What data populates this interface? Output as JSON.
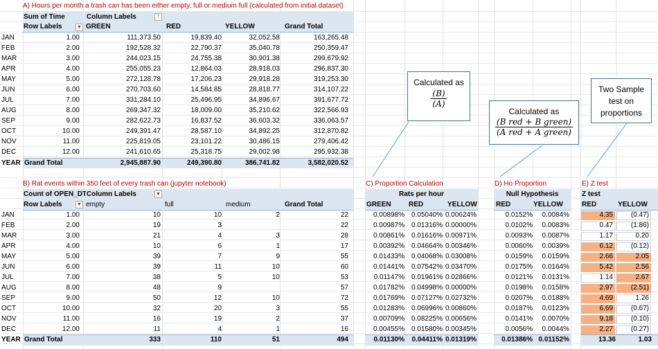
{
  "tableA": {
    "title": "A) Hours per month a trash can has been either empty, full or medium full (calculated from initial dataset)",
    "valueField": "Sum of Time",
    "columnLabels": "Column Labels",
    "rowLabels": "Row Labels",
    "headers": [
      "GREEN",
      "RED",
      "YELLOW",
      "Grand Total"
    ],
    "months": [
      "JAN",
      "FEB",
      "MAR",
      "APR",
      "MAY",
      "JUN",
      "JUL",
      "AUG",
      "SEP",
      "OCT",
      "NOV",
      "DEC"
    ],
    "rowNums": [
      "1.00",
      "2.00",
      "3.00",
      "4.00",
      "5.00",
      "6.00",
      "7.00",
      "8.00",
      "9.00",
      "10.00",
      "11.00",
      "12.00"
    ],
    "rows": [
      [
        "111,373.50",
        "19,839.40",
        "32,052.58",
        "163,265.48"
      ],
      [
        "192,528.32",
        "22,790.37",
        "35,040.78",
        "250,359.47"
      ],
      [
        "244,023.15",
        "24,755.38",
        "30,901.38",
        "299,679.92"
      ],
      [
        "255,055.23",
        "12,864.03",
        "28,918.03",
        "296,837.30"
      ],
      [
        "272,128.78",
        "17,206.23",
        "29,918.28",
        "319,253.30"
      ],
      [
        "270,703.60",
        "14,584.85",
        "28,818.77",
        "314,107.22"
      ],
      [
        "331,284.10",
        "25,496.95",
        "34,896.67",
        "391,677.72"
      ],
      [
        "269,347.32",
        "18,009.00",
        "35,210.62",
        "322,566.93"
      ],
      [
        "282,622.73",
        "16,837.52",
        "36,603.32",
        "336,063.57"
      ],
      [
        "249,391.47",
        "28,587.10",
        "34,892.25",
        "312,870.82"
      ],
      [
        "225,819.05",
        "23,101.22",
        "30,486.15",
        "279,406.42"
      ],
      [
        "241,610.65",
        "25,318.75",
        "29,002.98",
        "295,932.38"
      ]
    ],
    "totalRowKey": "YEAR",
    "grandTotalLabel": "Grand Total",
    "totals": [
      "2,945,887.90",
      "249,390.80",
      "386,741.82",
      "3,582,020.52"
    ]
  },
  "tableB": {
    "title": "B) Rat events within 350 feet of every trash can (jupyter notebook)",
    "valueField": "Count of OPEN_DT",
    "columnLabels": "Column Labels",
    "rowLabels": "Row Labels",
    "headers": [
      "empty",
      "full",
      "medium",
      "Grand Total"
    ],
    "rows": [
      [
        "10",
        "10",
        "2",
        "22"
      ],
      [
        "19",
        "3",
        "",
        "22"
      ],
      [
        "21",
        "4",
        "3",
        "28"
      ],
      [
        "10",
        "6",
        "1",
        "17"
      ],
      [
        "39",
        "7",
        "9",
        "55"
      ],
      [
        "39",
        "11",
        "10",
        "60"
      ],
      [
        "38",
        "5",
        "10",
        "53"
      ],
      [
        "48",
        "9",
        "",
        "57"
      ],
      [
        "50",
        "12",
        "10",
        "72"
      ],
      [
        "32",
        "20",
        "3",
        "55"
      ],
      [
        "16",
        "19",
        "2",
        "37"
      ],
      [
        "11",
        "4",
        "1",
        "16"
      ]
    ],
    "totalRowKey": "YEAR",
    "grandTotalLabel": "Grand Total",
    "totals": [
      "333",
      "110",
      "51",
      "494"
    ]
  },
  "tableC": {
    "title": "C) Proportion Calculation",
    "supertitle": "Rats per hour",
    "headers": [
      "GREEN",
      "RED",
      "YELLOW"
    ],
    "rows": [
      [
        "0.00898%",
        "0.05040%",
        "0.00624%"
      ],
      [
        "0.00987%",
        "0.01316%",
        "0.00000%"
      ],
      [
        "0.00861%",
        "0.01616%",
        "0.00971%"
      ],
      [
        "0.00392%",
        "0.04664%",
        "0.00346%"
      ],
      [
        "0.01433%",
        "0.04068%",
        "0.03008%"
      ],
      [
        "0.01441%",
        "0.07542%",
        "0.03470%"
      ],
      [
        "0.01147%",
        "0.01961%",
        "0.02866%"
      ],
      [
        "0.01782%",
        "0.04998%",
        "0.00000%"
      ],
      [
        "0.01769%",
        "0.07127%",
        "0.02732%"
      ],
      [
        "0.01283%",
        "0.06996%",
        "0.00860%"
      ],
      [
        "0.00709%",
        "0.08225%",
        "0.00656%"
      ],
      [
        "0.00455%",
        "0.01580%",
        "0.00345%"
      ]
    ],
    "totals": [
      "0.01130%",
      "0.04411%",
      "0.01319%"
    ]
  },
  "tableD": {
    "title": "D) Ho Proportion",
    "supertitle": "Null Hypothesis",
    "headers": [
      "RED",
      "YELLOW"
    ],
    "rows": [
      [
        "0.0152%",
        "0.0084%"
      ],
      [
        "0.0102%",
        "0.0083%"
      ],
      [
        "0.0093%",
        "0.0087%"
      ],
      [
        "0.0060%",
        "0.0039%"
      ],
      [
        "0.0159%",
        "0.0159%"
      ],
      [
        "0.0175%",
        "0.0164%"
      ],
      [
        "0.0121%",
        "0.0131%"
      ],
      [
        "0.0198%",
        "0.0158%"
      ],
      [
        "0.0207%",
        "0.0188%"
      ],
      [
        "0.0187%",
        "0.0123%"
      ],
      [
        "0.0141%",
        "0.0070%"
      ],
      [
        "0.0056%",
        "0.0044%"
      ]
    ],
    "totals": [
      "0.01386%",
      "0.01152%"
    ]
  },
  "tableE": {
    "title": "E) Z test",
    "supertitle": "Z test",
    "headers": [
      "RED",
      "YELLOW"
    ],
    "rows": [
      [
        "4.35",
        "(0.47)"
      ],
      [
        "0.47",
        "(1.86)"
      ],
      [
        "1.17",
        "0.20"
      ],
      [
        "6.12",
        "(0.12)"
      ],
      [
        "2.66",
        "2.05"
      ],
      [
        "5.42",
        "2.56"
      ],
      [
        "1.14",
        "2.67"
      ],
      [
        "2.97",
        "(2.51)"
      ],
      [
        "4.69",
        "1.26"
      ],
      [
        "6.69",
        "(0.67)"
      ],
      [
        "9.18",
        "(0.10)"
      ],
      [
        "2.27",
        "(0.27)"
      ]
    ],
    "highlight": [
      [
        true,
        false
      ],
      [
        false,
        false
      ],
      [
        false,
        false
      ],
      [
        true,
        false
      ],
      [
        true,
        true
      ],
      [
        true,
        true
      ],
      [
        false,
        true
      ],
      [
        true,
        true
      ],
      [
        true,
        false
      ],
      [
        true,
        false
      ],
      [
        true,
        false
      ],
      [
        true,
        false
      ]
    ],
    "highlightColor": "#f4b183",
    "totals": [
      "13.36",
      "1.03"
    ]
  },
  "callouts": [
    {
      "text": "Calculated as",
      "numerator": "(B)",
      "denominator": "(A)"
    },
    {
      "text": "Calculated as",
      "numerator": "(B red + B green)",
      "denominator": "(A red + A green)"
    },
    {
      "lines": [
        "Two Sample",
        "test on",
        "proportions"
      ]
    }
  ]
}
